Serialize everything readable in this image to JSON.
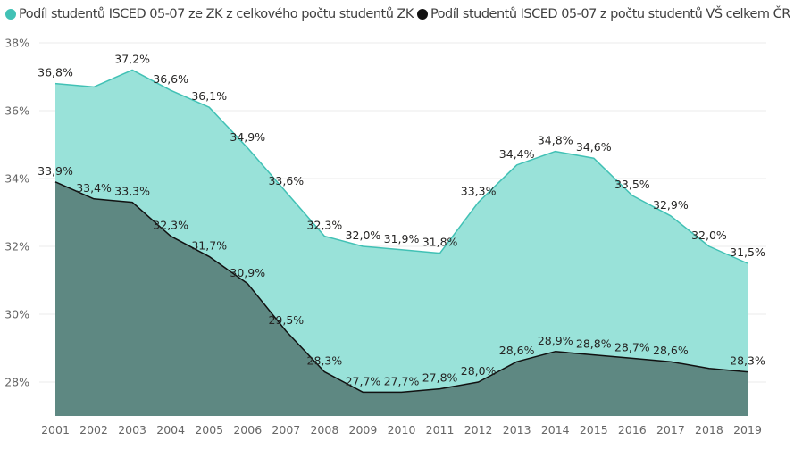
{
  "chart_data": {
    "type": "area",
    "title": "",
    "xlabel": "",
    "ylabel": "",
    "x": [
      "2001",
      "2002",
      "2003",
      "2004",
      "2005",
      "2006",
      "2007",
      "2008",
      "2009",
      "2010",
      "2011",
      "2012",
      "2013",
      "2014",
      "2015",
      "2016",
      "2017",
      "2018",
      "2019"
    ],
    "ylim": [
      27,
      38
    ],
    "yticks": [
      28,
      30,
      32,
      34,
      36,
      38
    ],
    "ytick_labels": [
      "28%",
      "30%",
      "32%",
      "34%",
      "36%",
      "38%"
    ],
    "grid": true,
    "legend_position": "top-left",
    "series": [
      {
        "name": "Podíl studentů ISCED 05-07 ze ZK z celkového počtu studentů ZK",
        "color": "#41c1b5",
        "fill": "#99e2d9",
        "values": [
          36.8,
          36.7,
          37.2,
          36.6,
          36.1,
          34.9,
          33.6,
          32.3,
          32.0,
          31.9,
          31.8,
          33.3,
          34.4,
          34.8,
          34.6,
          33.5,
          32.9,
          32.0,
          31.5
        ],
        "labels": [
          "36,8%",
          null,
          "37,2%",
          "36,6%",
          "36,1%",
          "34,9%",
          "33,6%",
          "32,3%",
          "32,0%",
          "31,9%",
          "31,8%",
          "33,3%",
          "34,4%",
          "34,8%",
          "34,6%",
          "33,5%",
          "32,9%",
          "32,0%",
          "31,5%"
        ]
      },
      {
        "name": "Podíl studentů ISCED 05-07 z počtu studentů VŠ celkem ČR",
        "color": "#111111",
        "fill": "#5e8882",
        "values": [
          33.9,
          33.4,
          33.3,
          32.3,
          31.7,
          30.9,
          29.5,
          28.3,
          27.7,
          27.7,
          27.8,
          28.0,
          28.6,
          28.9,
          28.8,
          28.7,
          28.6,
          28.4,
          28.3
        ],
        "labels": [
          "33,9%",
          "33,4%",
          "33,3%",
          "32,3%",
          "31,7%",
          "30,9%",
          "29,5%",
          "28,3%",
          "27,7%",
          "27,7%",
          "27,8%",
          "28,0%",
          "28,6%",
          "28,9%",
          "28,8%",
          "28,7%",
          "28,6%",
          null,
          "28,3%"
        ]
      }
    ]
  }
}
